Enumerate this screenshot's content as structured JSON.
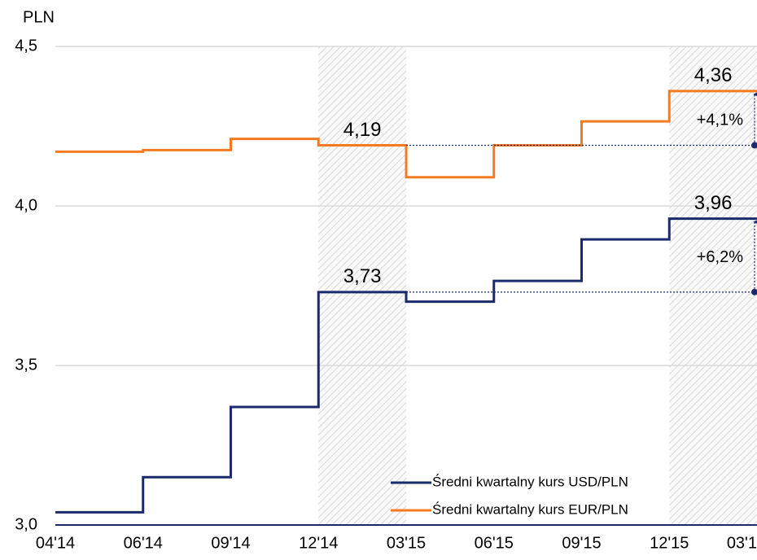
{
  "chart_data": {
    "type": "step",
    "y_unit": "PLN",
    "xlim": [
      0,
      8
    ],
    "xticks": [
      {
        "value": 0,
        "label": "04'14"
      },
      {
        "value": 1,
        "label": "06'14"
      },
      {
        "value": 2,
        "label": "09'14"
      },
      {
        "value": 3,
        "label": "12'14"
      },
      {
        "value": 4,
        "label": "03'15"
      },
      {
        "value": 5,
        "label": "06'15"
      },
      {
        "value": 6,
        "label": "09'15"
      },
      {
        "value": 7,
        "label": "12'15"
      },
      {
        "value": 8,
        "label": "03'1"
      }
    ],
    "ylim": [
      3.0,
      4.5
    ],
    "yticks": [
      {
        "value": 3.0,
        "label": "3,0"
      },
      {
        "value": 3.5,
        "label": "3,5"
      },
      {
        "value": 4.0,
        "label": "4,0"
      },
      {
        "value": 4.5,
        "label": "4,5"
      }
    ],
    "grid": true,
    "shaded": [
      [
        3,
        4
      ],
      [
        7,
        8
      ]
    ],
    "x": [
      0,
      1,
      2,
      3,
      4,
      5,
      6,
      7
    ],
    "series": [
      {
        "name": "Średni kwartalny kurs USD/PLN",
        "color": "#1a2a6c",
        "values": [
          3.04,
          3.15,
          3.37,
          3.73,
          3.7,
          3.765,
          3.895,
          3.96
        ],
        "value_labels": [
          null,
          null,
          null,
          "3,73",
          null,
          null,
          null,
          "3,96"
        ],
        "change_label": "+6,2%"
      },
      {
        "name": "Średni kwartalny kurs EUR/PLN",
        "color": "#f47b20",
        "values": [
          4.17,
          4.175,
          4.21,
          4.19,
          4.09,
          4.19,
          4.265,
          4.36
        ],
        "value_labels": [
          null,
          null,
          null,
          "4,19",
          null,
          null,
          null,
          "4,36"
        ],
        "change_label": "+4,1%"
      }
    ]
  }
}
